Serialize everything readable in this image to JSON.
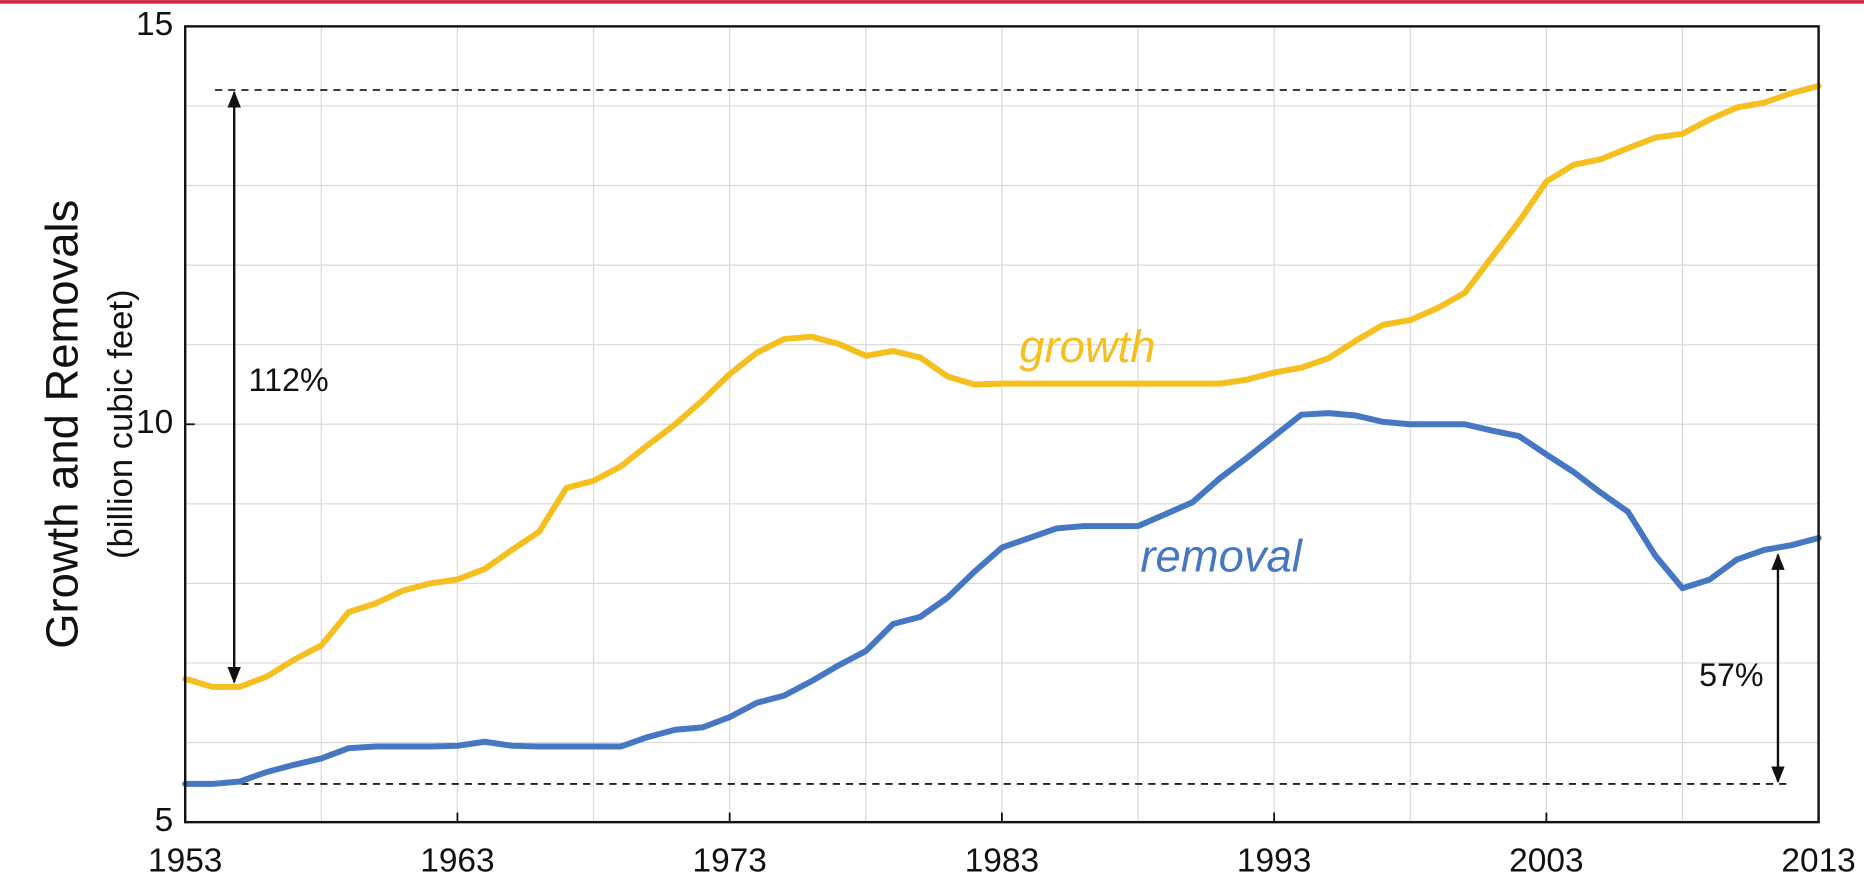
{
  "chart_data": {
    "type": "line",
    "y_label": "Growth and Removals",
    "y_label_units": "(billion cubic feet)",
    "x": [
      1953,
      1954,
      1955,
      1956,
      1957,
      1958,
      1959,
      1960,
      1961,
      1962,
      1963,
      1964,
      1965,
      1966,
      1967,
      1968,
      1969,
      1970,
      1971,
      1972,
      1973,
      1974,
      1975,
      1976,
      1977,
      1978,
      1979,
      1980,
      1981,
      1982,
      1983,
      1984,
      1985,
      1986,
      1987,
      1988,
      1989,
      1990,
      1991,
      1992,
      1993,
      1994,
      1995,
      1996,
      1997,
      1998,
      1999,
      2000,
      2001,
      2002,
      2003,
      2004,
      2005,
      2006,
      2007,
      2008,
      2009,
      2010,
      2011,
      2012,
      2013
    ],
    "series": [
      {
        "name": "growth",
        "color": "#f5bf1f",
        "values": [
          6.8,
          6.7,
          6.7,
          6.83,
          7.04,
          7.22,
          7.64,
          7.75,
          7.91,
          8.0,
          8.05,
          8.18,
          8.42,
          8.65,
          9.2,
          9.29,
          9.47,
          9.74,
          10.0,
          10.3,
          10.63,
          10.9,
          11.07,
          11.1,
          11.01,
          10.86,
          10.92,
          10.84,
          10.6,
          10.5,
          10.51,
          10.51,
          10.51,
          10.51,
          10.51,
          10.51,
          10.51,
          10.51,
          10.51,
          10.56,
          10.65,
          10.71,
          10.83,
          11.05,
          11.25,
          11.31,
          11.46,
          11.65,
          12.1,
          12.55,
          13.05,
          13.26,
          13.33,
          13.47,
          13.6,
          13.65,
          13.83,
          13.98,
          14.04,
          14.16,
          14.25
        ]
      },
      {
        "name": "removal",
        "color": "#4677c3",
        "values": [
          5.48,
          5.48,
          5.51,
          5.63,
          5.72,
          5.8,
          5.93,
          5.95,
          5.95,
          5.95,
          5.96,
          6.01,
          5.96,
          5.95,
          5.95,
          5.95,
          5.95,
          6.07,
          6.16,
          6.19,
          6.32,
          6.5,
          6.59,
          6.77,
          6.97,
          7.15,
          7.49,
          7.58,
          7.82,
          8.15,
          8.45,
          8.57,
          8.69,
          8.72,
          8.72,
          8.72,
          8.87,
          9.02,
          9.32,
          9.58,
          9.85,
          10.12,
          10.14,
          10.11,
          10.03,
          10.0,
          10.0,
          10.0,
          9.92,
          9.85,
          9.62,
          9.4,
          9.14,
          8.9,
          8.35,
          7.94,
          8.05,
          8.3,
          8.42,
          8.48,
          8.57
        ]
      }
    ],
    "xlim": [
      1953,
      2013
    ],
    "xticks": [
      1953,
      1963,
      1973,
      1983,
      1993,
      2003,
      2013
    ],
    "xgrid": [
      1958,
      1963,
      1968,
      1973,
      1978,
      1983,
      1988,
      1993,
      1998,
      2003,
      2008
    ],
    "ylim": [
      5,
      15
    ],
    "yticks": [
      5,
      10,
      15
    ],
    "ygrid": [
      6,
      7,
      8,
      9,
      10,
      11,
      12,
      13,
      14
    ],
    "grid": true,
    "reference_lines": [
      14.2,
      5.48
    ],
    "annotations": [
      "112%",
      "57%"
    ]
  }
}
